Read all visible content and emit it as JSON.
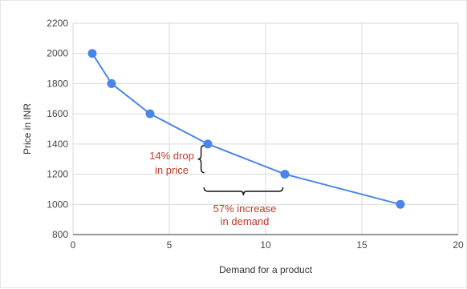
{
  "chart_data": {
    "type": "line",
    "title": "",
    "xlabel": "Demand for a product",
    "ylabel": "Price in INR",
    "xlim": [
      0,
      20
    ],
    "ylim": [
      800,
      2200
    ],
    "xticks": [
      "0",
      "5",
      "10",
      "15",
      "20"
    ],
    "yticks": [
      "800",
      "1000",
      "1200",
      "1400",
      "1600",
      "1800",
      "2000",
      "2200"
    ],
    "grid": true,
    "legend": "none",
    "series": [
      {
        "color": "#4a86e8",
        "points": [
          {
            "x": 1,
            "y": 2000
          },
          {
            "x": 2,
            "y": 1800
          },
          {
            "x": 4,
            "y": 1600
          },
          {
            "x": 7,
            "y": 1400
          },
          {
            "x": 11,
            "y": 1200
          },
          {
            "x": 17,
            "y": 1000
          }
        ]
      }
    ],
    "annotations": {
      "price_drop": [
        "14% drop",
        "in price"
      ],
      "demand_increase": [
        "57% increase",
        "in demand"
      ],
      "color": "#c0392b"
    }
  }
}
